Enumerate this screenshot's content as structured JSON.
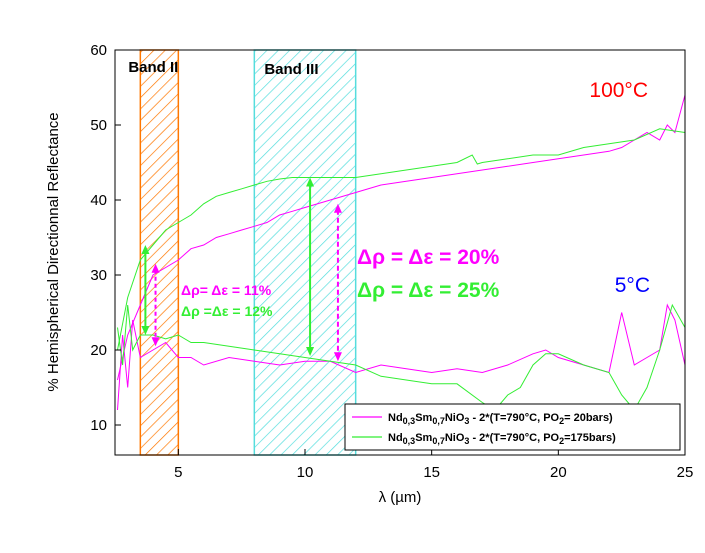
{
  "chart_data": {
    "type": "line",
    "title": "",
    "xlabel": "λ (µm)",
    "ylabel": "% Hemispherical Directionnal Reflectance",
    "xlim": [
      2.5,
      25
    ],
    "ylim": [
      6,
      60
    ],
    "xticks": [
      5,
      10,
      15,
      20,
      25
    ],
    "yticks": [
      10,
      20,
      30,
      40,
      50,
      60
    ],
    "grid": false,
    "legend_position": "bottom-right",
    "colors": {
      "magenta": "#ff00ff",
      "green": "#33ee33",
      "orange": "#ff7700",
      "cyan": "#55dddd",
      "red": "#ff0000",
      "blue": "#0000ff"
    },
    "bands": [
      {
        "label": "Band II",
        "x_range": [
          3.5,
          5
        ],
        "color": "#ff7700"
      },
      {
        "label": "Band III",
        "x_range": [
          8,
          12
        ],
        "color": "#55dddd"
      }
    ],
    "series": [
      {
        "legend": {
          "prefix": "Nd",
          "sub1": "0,3",
          "mid1": "Sm",
          "sub2": "0,7",
          "mid2": "NiO",
          "sub3": "3",
          "suffix_a": " - 2*(T=790°C, PO",
          "sub4": "2",
          "suffix_b": "= 20bars)"
        },
        "color": "#ff00ff",
        "hot": {
          "x": [
            2.6,
            3,
            3.5,
            4,
            4.5,
            5,
            5.5,
            6,
            6.5,
            7,
            7.5,
            8,
            8.5,
            9,
            9.5,
            10,
            11,
            12,
            13,
            14,
            15,
            16,
            17,
            18,
            19,
            20,
            21,
            22,
            22.5,
            23,
            23.5,
            24,
            24.3,
            24.6,
            25
          ],
          "y": [
            16,
            22,
            26,
            30,
            31,
            32,
            33.5,
            34,
            35,
            35.5,
            36,
            36.5,
            37,
            38,
            38.5,
            39,
            40,
            41,
            42,
            42.5,
            43,
            43.5,
            44,
            44.5,
            45,
            45.5,
            46,
            46.5,
            47,
            48,
            49,
            48,
            50,
            49,
            54
          ]
        },
        "cold": {
          "x": [
            2.6,
            2.8,
            3,
            3.2,
            3.5,
            4,
            4.5,
            5,
            5.5,
            6,
            7,
            8,
            9,
            10,
            11,
            12,
            13,
            14,
            15,
            16,
            17,
            18,
            19,
            19.5,
            20,
            21,
            22,
            22.5,
            23,
            23.5,
            24,
            24.3,
            24.6,
            25
          ],
          "y": [
            12,
            22,
            15,
            24,
            19,
            20,
            21,
            19,
            19,
            18,
            19,
            18.5,
            18,
            18.5,
            18.5,
            17,
            18,
            17.5,
            17,
            17.5,
            17,
            18,
            19.5,
            20,
            19,
            18,
            17,
            25,
            18,
            19,
            20,
            26,
            24,
            18
          ]
        }
      },
      {
        "legend": {
          "prefix": "Nd",
          "sub1": "0,3",
          "mid1": "Sm",
          "sub2": "0,7",
          "mid2": "NiO",
          "sub3": "3",
          "suffix_a": " - 2*(T=790°C, PO",
          "sub4": "2",
          "suffix_b": "=175bars)"
        },
        "color": "#33ee33",
        "hot": {
          "x": [
            2.6,
            3,
            3.5,
            4,
            4.5,
            5,
            5.5,
            6,
            6.5,
            7,
            7.5,
            8,
            8.5,
            9,
            9.5,
            10,
            11,
            12,
            13,
            14,
            15,
            16,
            16.6,
            16.8,
            17,
            18,
            19,
            20,
            21,
            22,
            23,
            24,
            25
          ],
          "y": [
            20,
            27,
            32,
            34,
            36,
            37,
            38,
            39.5,
            40.5,
            41,
            41.5,
            42,
            42.5,
            42.8,
            43,
            43,
            43,
            43,
            43.5,
            44,
            44.5,
            45,
            46,
            44.8,
            45,
            45.5,
            46,
            46,
            47,
            47.5,
            48,
            49.5,
            49
          ]
        },
        "cold": {
          "x": [
            2.6,
            2.8,
            3,
            3.2,
            3.5,
            4,
            4.5,
            5,
            5.5,
            6,
            7,
            8,
            9,
            10,
            11,
            12,
            13,
            14,
            15,
            16,
            17,
            17.5,
            18,
            18.5,
            19,
            19.5,
            20,
            21,
            22,
            22.5,
            23,
            23.5,
            24,
            24.5,
            25
          ],
          "y": [
            23,
            18,
            26,
            20,
            22,
            22,
            21.5,
            22,
            21,
            21,
            20.5,
            20,
            19.5,
            19,
            18.5,
            18,
            16.5,
            16,
            15.5,
            15.5,
            13,
            12,
            14,
            15,
            18,
            19.5,
            19.5,
            18,
            17,
            14,
            12,
            15,
            20,
            26,
            23
          ]
        }
      }
    ],
    "temperature_labels": {
      "hot": "100°C",
      "cold": "5°C"
    },
    "annotations": {
      "band2_magenta": "Δρ= Δε = 11%",
      "band2_green": "Δρ =Δε = 12%",
      "band3_magenta": "Δρ = Δε = 20%",
      "band3_green": "Δρ = Δε = 25%"
    }
  }
}
